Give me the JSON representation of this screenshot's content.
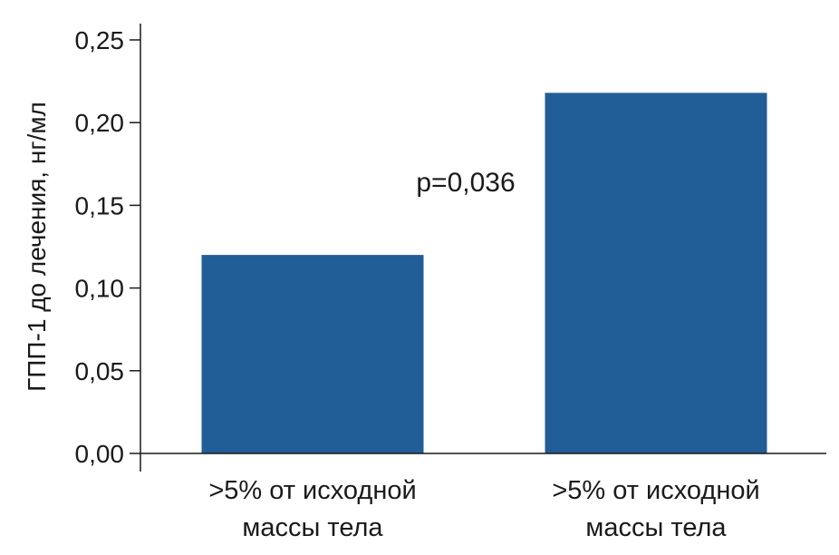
{
  "chart_data": {
    "type": "bar",
    "categories": [
      ">5% от исходной массы тела",
      ">5% от исходной массы тела"
    ],
    "category_lines": [
      [
        ">5% от исходной",
        "массы тела"
      ],
      [
        ">5% от исходной",
        "массы тела"
      ]
    ],
    "values": [
      0.12,
      0.218
    ],
    "title": "",
    "xlabel": "",
    "ylabel": "ГПП-1 до лечения, нг/мл",
    "ylim": [
      0,
      0.25
    ],
    "yticks": [
      0,
      0.05,
      0.1,
      0.15,
      0.2,
      0.25
    ],
    "ytick_labels": [
      "0,00",
      "0,05",
      "0,10",
      "0,15",
      "0,20",
      "0,25"
    ],
    "annotation": "p=0,036",
    "grid": false,
    "bar_color": "#215d96"
  }
}
